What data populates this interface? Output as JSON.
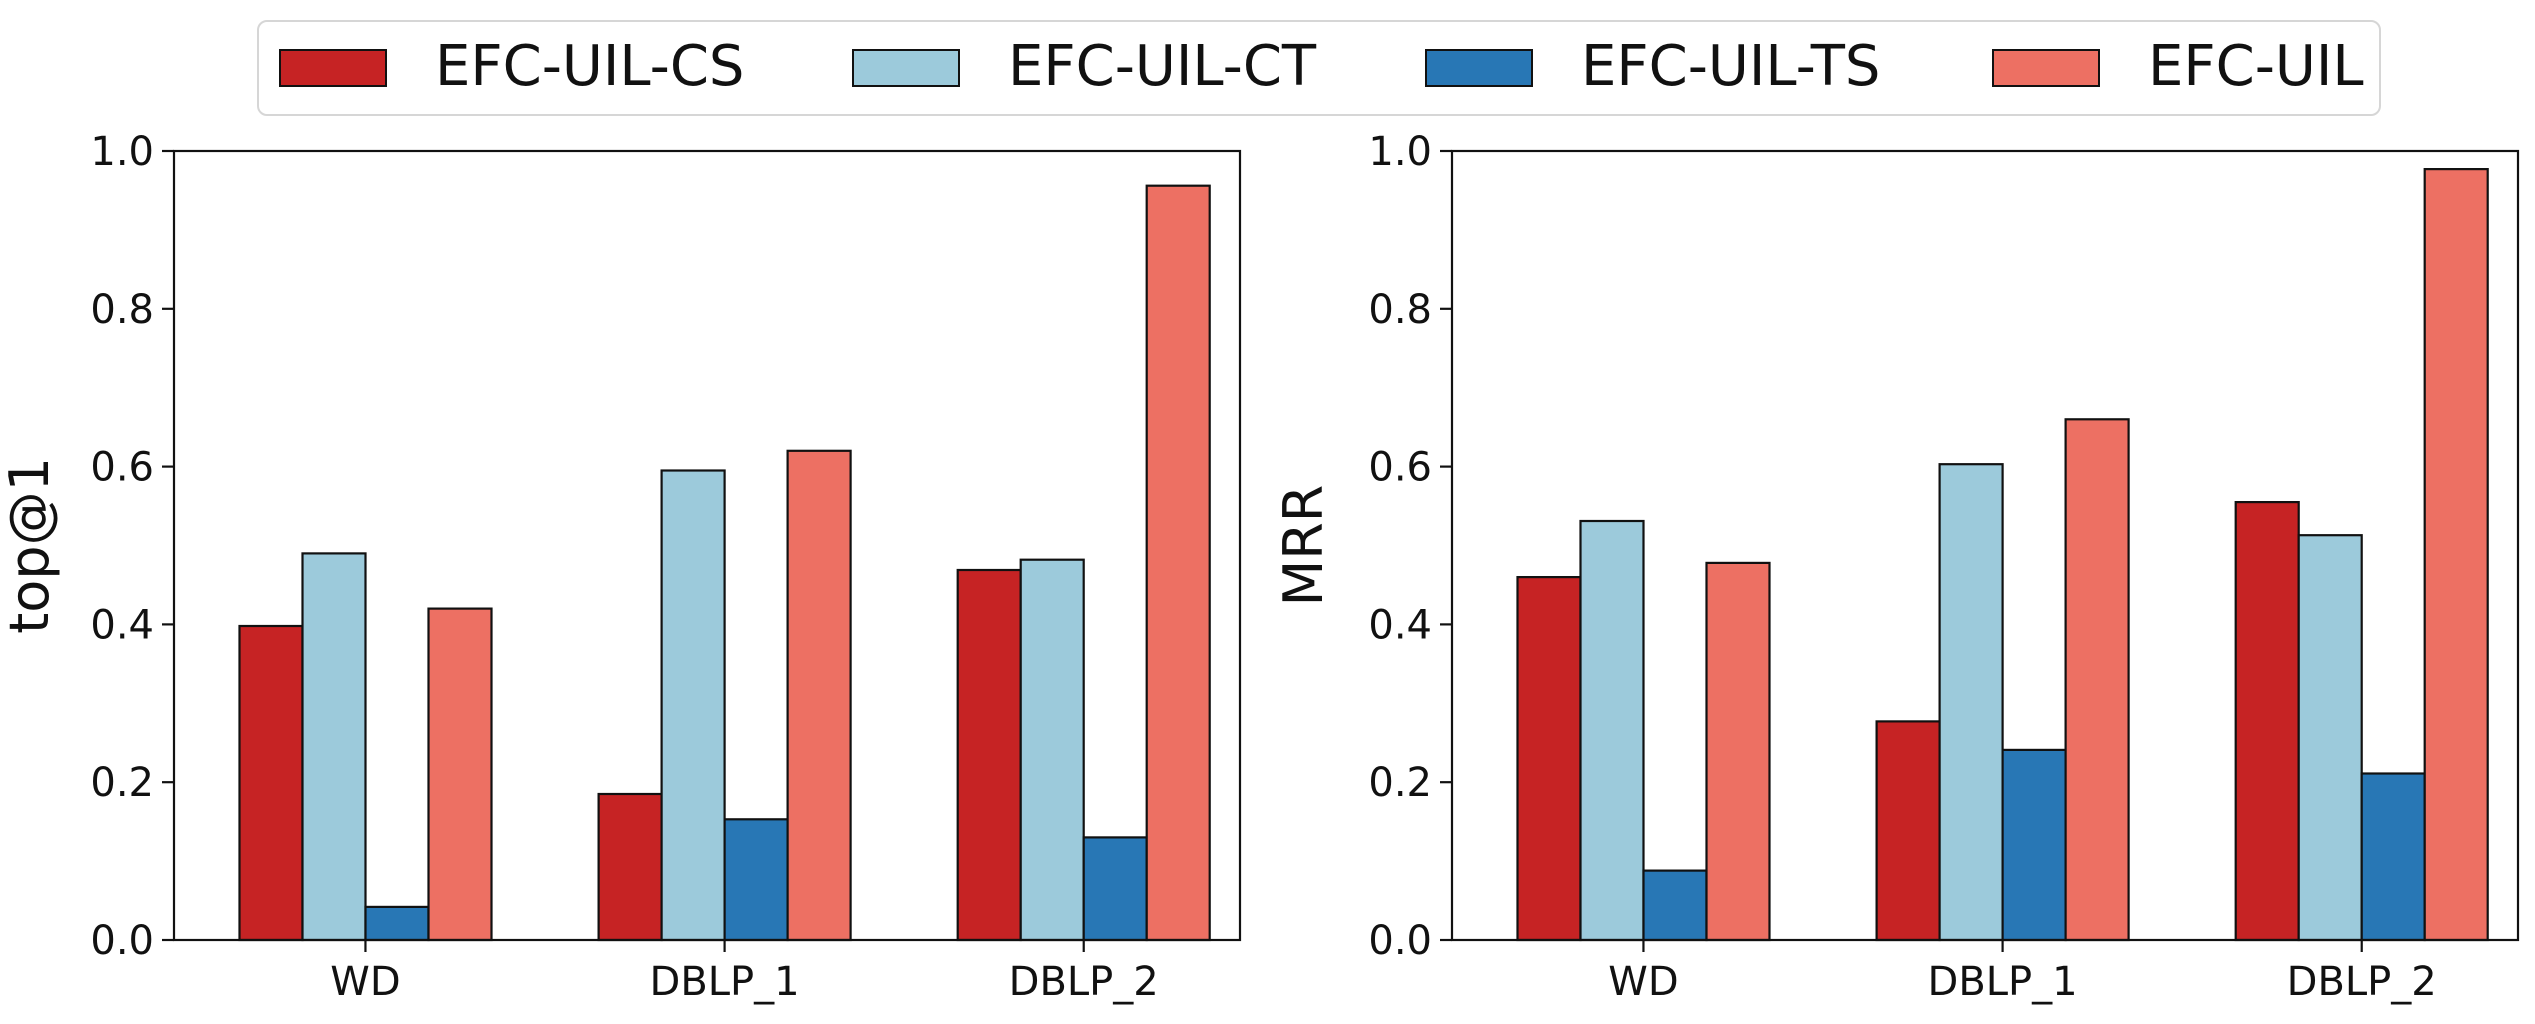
{
  "legend": {
    "items": [
      {
        "label": "EFC-UIL-CS",
        "color": "#c62324"
      },
      {
        "label": "EFC-UIL-CT",
        "color": "#9ccadb"
      },
      {
        "label": "EFC-UIL-TS",
        "color": "#2877b5"
      },
      {
        "label": "EFC-UIL",
        "color": "#ed7063"
      }
    ]
  },
  "chart_data": [
    {
      "type": "bar",
      "ylabel": "top@1",
      "categories": [
        "WD",
        "DBLP_1",
        "DBLP_2"
      ],
      "ylim": [
        0,
        1.0
      ],
      "yticks": [
        "0.0",
        "0.2",
        "0.4",
        "0.6",
        "0.8",
        "1.0"
      ],
      "series": [
        {
          "name": "EFC-UIL-CS",
          "values": [
            0.398,
            0.185,
            0.469
          ]
        },
        {
          "name": "EFC-UIL-CT",
          "values": [
            0.49,
            0.595,
            0.482
          ]
        },
        {
          "name": "EFC-UIL-TS",
          "values": [
            0.042,
            0.153,
            0.13
          ]
        },
        {
          "name": "EFC-UIL",
          "values": [
            0.42,
            0.62,
            0.956
          ]
        }
      ]
    },
    {
      "type": "bar",
      "ylabel": "MRR",
      "categories": [
        "WD",
        "DBLP_1",
        "DBLP_2"
      ],
      "ylim": [
        0,
        1.0
      ],
      "yticks": [
        "0.0",
        "0.2",
        "0.4",
        "0.6",
        "0.8",
        "1.0"
      ],
      "series": [
        {
          "name": "EFC-UIL-CS",
          "values": [
            0.46,
            0.277,
            0.555
          ]
        },
        {
          "name": "EFC-UIL-CT",
          "values": [
            0.531,
            0.603,
            0.513
          ]
        },
        {
          "name": "EFC-UIL-TS",
          "values": [
            0.088,
            0.241,
            0.211
          ]
        },
        {
          "name": "EFC-UIL",
          "values": [
            0.478,
            0.66,
            0.977
          ]
        }
      ]
    }
  ]
}
